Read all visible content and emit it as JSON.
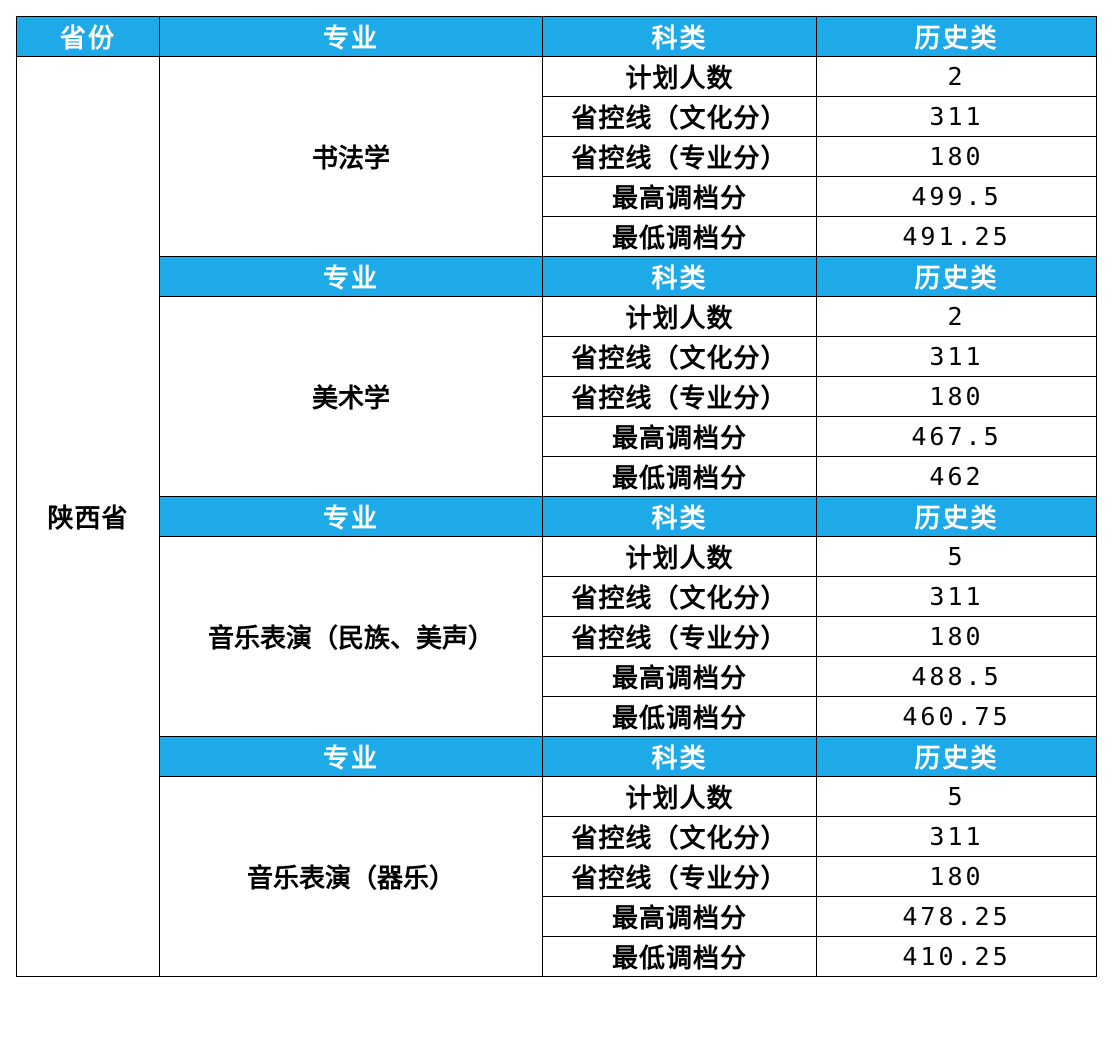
{
  "header": {
    "province": "省份",
    "major": "专业",
    "category": "科类",
    "history": "历史类"
  },
  "province": "陕西省",
  "metric_labels": {
    "planned": "计划人数",
    "culture_line": "省控线（文化分）",
    "major_line": "省控线（专业分）",
    "max_score": "最高调档分",
    "min_score": "最低调档分"
  },
  "groups": [
    {
      "major": "书法学",
      "values": [
        "2",
        "311",
        "180",
        "499.5",
        "491.25"
      ]
    },
    {
      "major": "美术学",
      "values": [
        "2",
        "311",
        "180",
        "467.5",
        "462"
      ]
    },
    {
      "major": "音乐表演（民族、美声）",
      "values": [
        "5",
        "311",
        "180",
        "488.5",
        "460.75"
      ]
    },
    {
      "major": "音乐表演（器乐）",
      "values": [
        "5",
        "311",
        "180",
        "478.25",
        "410.25"
      ]
    }
  ],
  "colors": {
    "header_bg": "#1ea9e8",
    "header_text": "#ffffff",
    "border": "#000000"
  }
}
